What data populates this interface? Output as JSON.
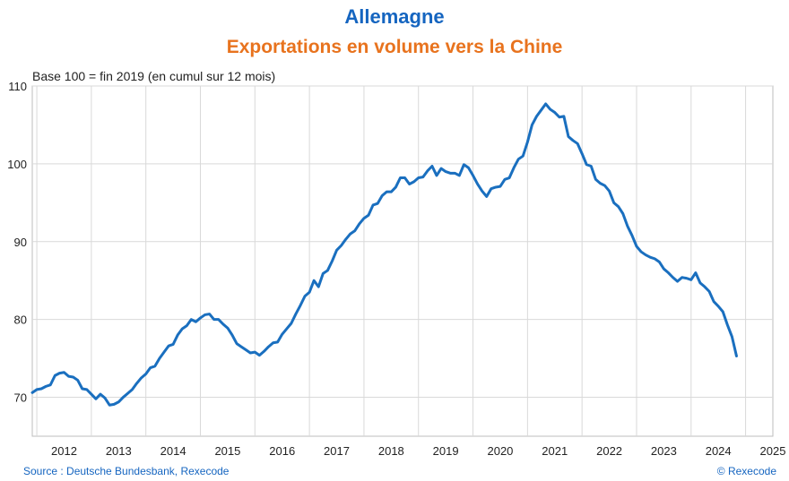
{
  "header": {
    "title": "Allemagne",
    "subtitle": "Exportations en volume vers la Chine",
    "unit_note": "Base 100 = fin 2019 (en cumul sur 12 mois)"
  },
  "footer": {
    "source": "Source : Deutsche Bundesbank, Rexecode",
    "copyright": "© Rexecode"
  },
  "colors": {
    "line": "#1a6fbf",
    "title": "#1565c0",
    "subtitle": "#e8731e",
    "grid": "#d9d9d9"
  },
  "chart_data": {
    "type": "line",
    "title": "Exportations en volume vers la Chine",
    "ylabel": "Base 100 = fin 2019 (en cumul sur 12 mois)",
    "xlabel": "",
    "ylim": [
      65,
      110
    ],
    "yticks": [
      70,
      80,
      90,
      100,
      110
    ],
    "xlim": [
      "2011-12",
      "2025-07"
    ],
    "xticks": [
      "2012",
      "2013",
      "2014",
      "2015",
      "2016",
      "2017",
      "2018",
      "2019",
      "2020",
      "2021",
      "2022",
      "2023",
      "2024",
      "2025"
    ],
    "grid": true,
    "series": [
      {
        "name": "",
        "start": "2011-12",
        "frequency": "monthly",
        "values": [
          70.6,
          71.0,
          71.1,
          71.4,
          71.6,
          72.8,
          73.1,
          73.2,
          72.7,
          72.6,
          72.2,
          71.1,
          71.0,
          70.4,
          69.8,
          70.4,
          69.9,
          69.0,
          69.1,
          69.4,
          70.0,
          70.5,
          71.0,
          71.8,
          72.5,
          73.0,
          73.8,
          74.0,
          75.0,
          75.8,
          76.6,
          76.8,
          78.0,
          78.8,
          79.2,
          80.0,
          79.7,
          80.2,
          80.6,
          80.7,
          80.0,
          80.0,
          79.4,
          78.9,
          78.0,
          76.9,
          76.5,
          76.1,
          75.7,
          75.8,
          75.4,
          75.9,
          76.5,
          77.0,
          77.1,
          78.1,
          78.8,
          79.5,
          80.7,
          81.8,
          83.0,
          83.5,
          85.0,
          84.2,
          85.9,
          86.3,
          87.5,
          88.9,
          89.5,
          90.3,
          91.0,
          91.4,
          92.3,
          93.0,
          93.4,
          94.7,
          94.9,
          95.9,
          96.4,
          96.4,
          97.0,
          98.2,
          98.2,
          97.4,
          97.7,
          98.2,
          98.3,
          99.1,
          99.7,
          98.5,
          99.4,
          99.0,
          98.8,
          98.8,
          98.5,
          99.9,
          99.5,
          98.5,
          97.4,
          96.5,
          95.8,
          96.8,
          97.0,
          97.1,
          98.0,
          98.2,
          99.5,
          100.6,
          101.0,
          102.8,
          105.0,
          106.1,
          106.9,
          107.7,
          107.0,
          106.6,
          106.0,
          106.1,
          103.5,
          103.0,
          102.6,
          101.3,
          99.9,
          99.7,
          98.0,
          97.5,
          97.2,
          96.5,
          95.0,
          94.5,
          93.6,
          92.0,
          90.8,
          89.4,
          88.7,
          88.3,
          88.0,
          87.8,
          87.4,
          86.5,
          86.0,
          85.4,
          84.9,
          85.4,
          85.3,
          85.1,
          86.0,
          84.7,
          84.2,
          83.6,
          82.3,
          81.7,
          81.0,
          79.3,
          77.8,
          75.3
        ]
      }
    ]
  }
}
